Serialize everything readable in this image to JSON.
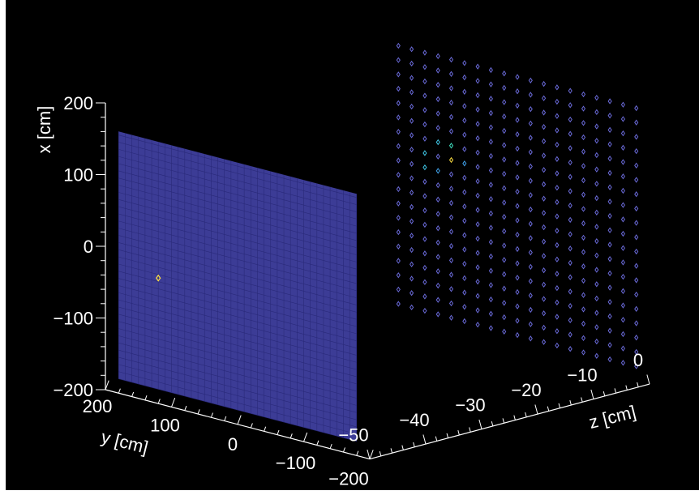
{
  "chart_data": {
    "type": "scatter",
    "title": "",
    "view": "3d",
    "axes": {
      "x": {
        "label": "x [cm]",
        "range": [
          -200,
          200
        ],
        "ticks": [
          "200",
          "100",
          "0",
          "−100",
          "−200"
        ]
      },
      "y": {
        "label": "y [cm]",
        "range": [
          -200,
          200
        ],
        "ticks": [
          "200",
          "100",
          "0",
          "−100",
          "−200"
        ]
      },
      "z": {
        "label": "z [cm]",
        "range": [
          -50,
          0
        ],
        "ticks": [
          "−50",
          "−40",
          "−30",
          "−20",
          "−10",
          "0"
        ]
      }
    },
    "series": [
      {
        "plane": "z = -50 (dense layer)",
        "grid_x_range": [
          -180,
          165
        ],
        "grid_y_range": [
          -180,
          180
        ],
        "grid_pitch": 2,
        "base_color": "#3c3c96",
        "hits": [
          {
            "x": -25,
            "y": 120,
            "z": -50,
            "level": "high",
            "color": "#ffe040"
          }
        ]
      },
      {
        "plane": "z = 0 (coarse layer)",
        "grid_x_range": [
          -180,
          180
        ],
        "grid_y_range": [
          -180,
          180
        ],
        "grid_pitch": 20,
        "base_color": "#6a6ad8",
        "hits": [
          {
            "x": 60,
            "y": 120,
            "z": 0,
            "level": "mid",
            "color": "#40c8e8"
          },
          {
            "x": 40,
            "y": 140,
            "z": 0,
            "level": "mid",
            "color": "#40c8e8"
          },
          {
            "x": 60,
            "y": 100,
            "z": 0,
            "level": "mid",
            "color": "#40e0c0"
          },
          {
            "x": 40,
            "y": 100,
            "z": 0,
            "level": "high",
            "color": "#ffe040"
          },
          {
            "x": 20,
            "y": 140,
            "z": 0,
            "level": "mid",
            "color": "#40c8e8"
          },
          {
            "x": 20,
            "y": 120,
            "z": 0,
            "level": "mid",
            "color": "#40a0e8"
          },
          {
            "x": 40,
            "y": 80,
            "z": 0,
            "level": "mid",
            "color": "#40a0e8"
          }
        ]
      }
    ],
    "colors": {
      "background": "#000000",
      "axis": "#ffffff"
    },
    "grid": false,
    "legend": "none"
  }
}
